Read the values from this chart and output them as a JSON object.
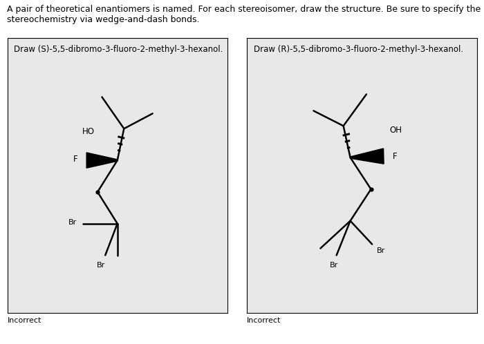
{
  "title_line1": "A pair of theoretical enantiomers is named. For each stereoisomer, draw the structure. Be sure to specify the",
  "title_line2": "stereochemistry via wedge-and-dash bonds.",
  "left_label": "Draw (S)-5,5-dibromo-3-fluoro-2-methyl-3-hexanol.",
  "right_label": "Draw (R)-5,5-dibromo-3-fluoro-2-methyl-3-hexanol.",
  "footer_left": "Incorrect",
  "footer_right": "Incorrect",
  "bg_outer": "#ffffff",
  "box_bg": "#e8e8e8",
  "line_color": "#000000",
  "text_color": "#000000",
  "font_size_title": 9.0,
  "font_size_label": 8.5,
  "font_size_atom": 8.5,
  "font_size_footer": 8.0,
  "lw": 1.8
}
